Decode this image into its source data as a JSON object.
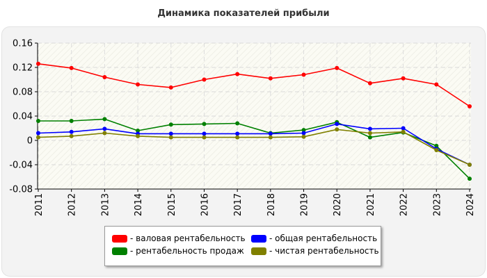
{
  "title": "Динамика показателей прибыли",
  "chart_data": {
    "type": "line",
    "title": "Динамика показателей прибыли",
    "x": [
      "2011",
      "2012",
      "2013",
      "2014",
      "2015",
      "2016",
      "2017",
      "2018",
      "2019",
      "2020",
      "2021",
      "2022",
      "2023",
      "2024"
    ],
    "ylim": [
      -0.08,
      0.16
    ],
    "yticks": [
      -0.08,
      -0.04,
      0,
      0.04,
      0.08,
      0.12,
      0.16
    ],
    "ytick_labels": [
      "-0.08",
      "-0.04",
      "0",
      "0.04",
      "0.08",
      "0.12",
      "0.16"
    ],
    "grid": true,
    "legend_position": "bottom",
    "series": [
      {
        "name": "- валовая рентабельность",
        "color": "#ff0000",
        "values": [
          0.126,
          0.119,
          0.104,
          0.092,
          0.087,
          0.1,
          0.109,
          0.102,
          0.108,
          0.119,
          0.094,
          0.102,
          0.092,
          0.056
        ]
      },
      {
        "name": "- рентабельность продаж",
        "color": "#008000",
        "values": [
          0.032,
          0.032,
          0.035,
          0.016,
          0.026,
          0.027,
          0.028,
          0.012,
          0.017,
          0.03,
          0.005,
          0.013,
          -0.009,
          -0.063
        ]
      },
      {
        "name": "- общая рентабельность",
        "color": "#0000ff",
        "values": [
          0.012,
          0.014,
          0.019,
          0.011,
          0.011,
          0.011,
          0.011,
          0.011,
          0.012,
          0.027,
          0.019,
          0.02,
          -0.014,
          -0.04
        ]
      },
      {
        "name": "- чистая рентабельность",
        "color": "#808000",
        "values": [
          0.005,
          0.007,
          0.012,
          0.007,
          0.005,
          0.005,
          0.005,
          0.005,
          0.006,
          0.018,
          0.012,
          0.014,
          -0.016,
          -0.04
        ]
      }
    ]
  }
}
